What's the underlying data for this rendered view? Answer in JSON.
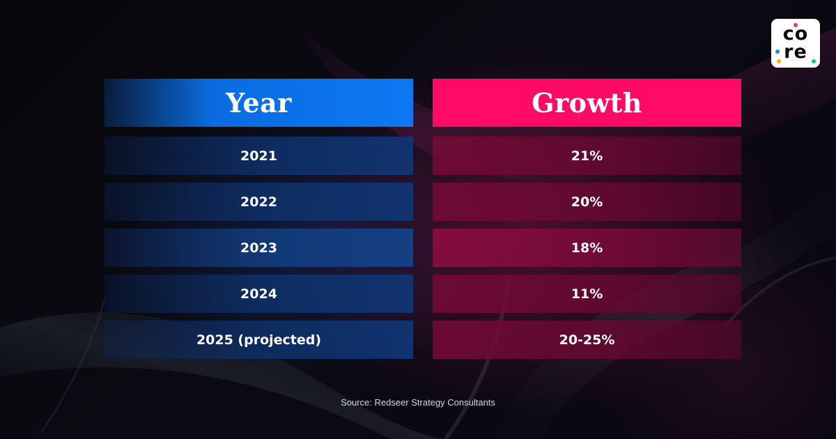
{
  "brand": {
    "logo_line1": "co",
    "logo_line2": "re",
    "logo_dot_colors": [
      "#1e88ff",
      "#ff2d78",
      "#22c55e",
      "#f5b800"
    ]
  },
  "chart_data": {
    "type": "table",
    "columns": [
      "Year",
      "Growth"
    ],
    "rows": [
      [
        "2021",
        "21%"
      ],
      [
        "2022",
        "20%"
      ],
      [
        "2023",
        "18%"
      ],
      [
        "2024",
        "11%"
      ],
      [
        "2025 (projected)",
        "20-25%"
      ]
    ],
    "header_colors": {
      "year": "#0d78f2",
      "growth": "#ff0a66"
    }
  },
  "source": "Source: Redseer Strategy Consultants"
}
